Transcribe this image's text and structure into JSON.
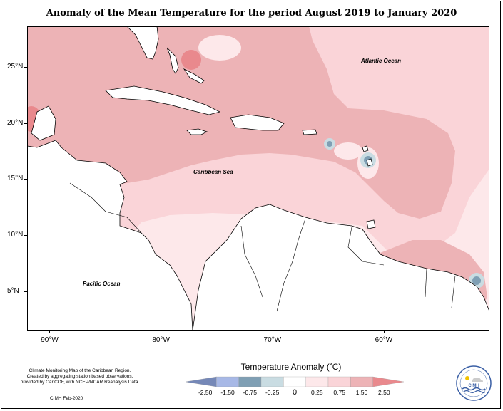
{
  "title": "Anomaly of the Mean Temperature for the period August 2019 to January 2020",
  "map": {
    "x_ticks": [
      {
        "lon": -90,
        "label": "90°W"
      },
      {
        "lon": -80,
        "label": "80°W"
      },
      {
        "lon": -70,
        "label": "70°W"
      },
      {
        "lon": -60,
        "label": "60°W"
      }
    ],
    "y_ticks": [
      {
        "lat": 25,
        "label": "25°N"
      },
      {
        "lat": 20,
        "label": "20°N"
      },
      {
        "lat": 15,
        "label": "15°N"
      },
      {
        "lat": 10,
        "label": "10°N"
      },
      {
        "lat": 5,
        "label": "5°N"
      }
    ],
    "labels": {
      "atlantic": "Atlantic Ocean",
      "caribbean": "Caribbean Sea",
      "pacific": "Pacific Ocean"
    },
    "colors": {
      "anom_0_25": "#fde8ea",
      "anom_0_25_0_75": "#fad4d8",
      "anom_0_75_1_5": "#edb3b6",
      "anom_1_5_2_5": "#e9898d",
      "anom_neg_small": "#c9dce2",
      "anom_neg": "#7f9fb4",
      "land": "#ffffff"
    }
  },
  "legend": {
    "title": "Temperature Anomaly (˚C)",
    "ticks": [
      "-2.50",
      "-1.50",
      "-0.75",
      "-0.25",
      "0",
      "0.25",
      "0.75",
      "1.50",
      "2.50"
    ],
    "colors": [
      "#7588b7",
      "#a7b8e6",
      "#7f9fb4",
      "#c9dce2",
      "#ffffff",
      "#fde8ea",
      "#fad4d8",
      "#edb3b6",
      "#e9898d"
    ]
  },
  "credits": {
    "line1": "Climate Monitoring Map of the Caribbean Region.",
    "line2": "Created by aggregating station based observations,",
    "line3": "provided by CariCOF, with NCEP/NCAR Reanalysis Data.",
    "date": "CIMH Feb-2020"
  },
  "logo": {
    "text": "CIMH"
  }
}
